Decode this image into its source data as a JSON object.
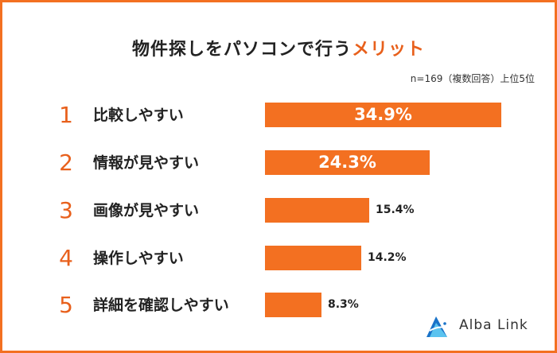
{
  "chart_data": {
    "type": "bar",
    "orientation": "horizontal",
    "title_main": "物件探しをパソコンで行う",
    "title_accent": "メリット",
    "note": "n=169（複数回答）上位5位",
    "ranks": [
      "1",
      "2",
      "3",
      "4",
      "5"
    ],
    "categories": [
      "比較しやすい",
      "情報が見やすい",
      "画像が見やすい",
      "操作しやすい",
      "詳細を確認しやすい"
    ],
    "values": [
      34.9,
      24.3,
      15.4,
      14.2,
      8.3
    ],
    "value_labels": [
      "34.9%",
      "24.3%",
      "15.4%",
      "14.2%",
      "8.3%"
    ],
    "unit": "%",
    "grid": false,
    "colors": {
      "bar": "#f37021",
      "accent": "#e8601c",
      "border": "#f37021"
    }
  },
  "logo": {
    "text": "Alba Link",
    "colors": [
      "#1a73c8",
      "#5bc3ef"
    ]
  }
}
